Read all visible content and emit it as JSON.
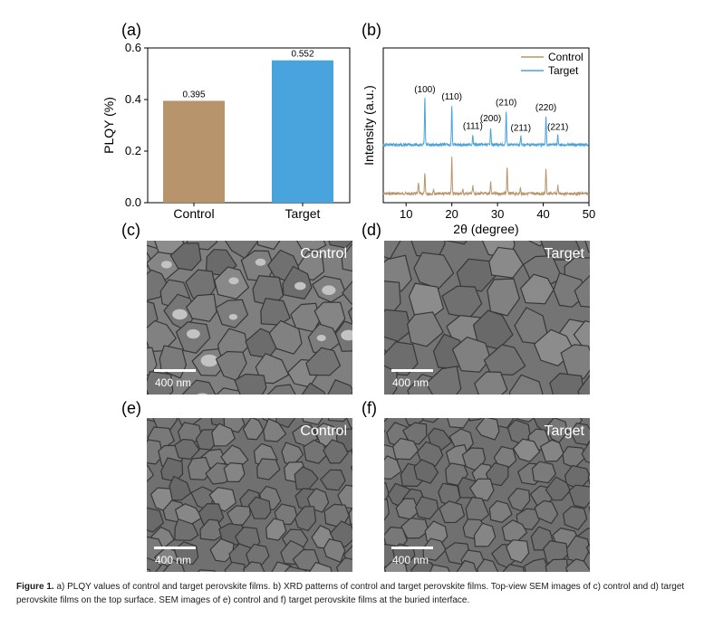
{
  "panels": {
    "a": "(a)",
    "b": "(b)",
    "c": "(c)",
    "d": "(d)",
    "e": "(e)",
    "f": "(f)"
  },
  "chart_data": [
    {
      "type": "bar",
      "title": "",
      "categories": [
        "Control",
        "Target"
      ],
      "values": [
        0.395,
        0.552
      ],
      "value_labels": [
        "0.395",
        "0.552"
      ],
      "colors": [
        "#b8946c",
        "#49a4dd"
      ],
      "ylabel": "PLQY (%)",
      "xlabel": "",
      "ylim": [
        0,
        0.6
      ],
      "yticks": [
        0.0,
        0.2,
        0.4,
        0.6
      ],
      "ytick_labels": [
        "0.0",
        "0.2",
        "0.4",
        "0.6"
      ]
    },
    {
      "type": "line",
      "title": "",
      "xlabel": "2θ (degree)",
      "ylabel": "Intensity (a.u.)",
      "xlim": [
        5,
        50
      ],
      "xticks": [
        10,
        20,
        30,
        40,
        50
      ],
      "xtick_labels": [
        "10",
        "20",
        "30",
        "40",
        "50"
      ],
      "legend": [
        "Control",
        "Target"
      ],
      "series": [
        {
          "name": "Control",
          "color": "#b8946c",
          "peaks": [
            {
              "x": 12.7,
              "h": 0.3
            },
            {
              "x": 14.1,
              "h": 0.55
            },
            {
              "x": 16.0,
              "h": 0.12
            },
            {
              "x": 20.0,
              "h": 1.0
            },
            {
              "x": 22.4,
              "h": 0.1
            },
            {
              "x": 24.6,
              "h": 0.2
            },
            {
              "x": 28.5,
              "h": 0.32
            },
            {
              "x": 32.1,
              "h": 0.75
            },
            {
              "x": 35.0,
              "h": 0.15
            },
            {
              "x": 40.6,
              "h": 0.68
            },
            {
              "x": 43.2,
              "h": 0.22
            }
          ]
        },
        {
          "name": "Target",
          "color": "#49a4dd",
          "peaks": [
            {
              "x": 14.1,
              "h": 1.0
            },
            {
              "x": 20.0,
              "h": 0.85
            },
            {
              "x": 24.6,
              "h": 0.22
            },
            {
              "x": 28.5,
              "h": 0.38
            },
            {
              "x": 31.9,
              "h": 0.72
            },
            {
              "x": 35.1,
              "h": 0.18
            },
            {
              "x": 40.6,
              "h": 0.62
            },
            {
              "x": 43.2,
              "h": 0.2
            }
          ],
          "annotations": [
            {
              "x": 14.1,
              "label": "(100)"
            },
            {
              "x": 20.0,
              "label": "(110)"
            },
            {
              "x": 24.6,
              "label": "(111)"
            },
            {
              "x": 28.5,
              "label": "(200)"
            },
            {
              "x": 31.9,
              "label": "(210)"
            },
            {
              "x": 35.1,
              "label": "(211)"
            },
            {
              "x": 40.6,
              "label": "(220)"
            },
            {
              "x": 43.2,
              "label": "(221)"
            }
          ]
        }
      ]
    }
  ],
  "sem": [
    {
      "id": "c",
      "label": "Control",
      "scale": "400 nm"
    },
    {
      "id": "d",
      "label": "Target",
      "scale": "400 nm"
    },
    {
      "id": "e",
      "label": "Control",
      "scale": "400 nm"
    },
    {
      "id": "f",
      "label": "Target",
      "scale": "400 nm"
    }
  ],
  "caption": {
    "label": "Figure 1.",
    "text": "a) PLQY values of control and target perovskite films. b) XRD patterns of control and target perovskite films. Top-view SEM images of c) control and d) target perovskite films on the top surface. SEM images of e) control and f) target perovskite films at the buried interface."
  }
}
